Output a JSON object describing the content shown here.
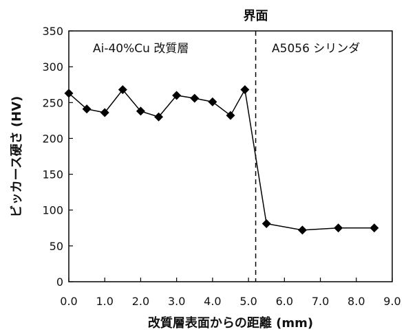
{
  "chart_data": {
    "type": "line",
    "x": [
      0.0,
      0.5,
      1.0,
      1.5,
      2.0,
      2.5,
      3.0,
      3.5,
      4.0,
      4.5,
      4.9,
      5.5,
      6.5,
      7.5,
      8.5
    ],
    "series": [
      {
        "values": [
          263,
          241,
          236,
          268,
          238,
          230,
          260,
          256,
          251,
          232,
          268,
          81,
          72,
          75,
          75
        ]
      }
    ],
    "xlabel": "改質層表面からの距離 (mm)",
    "ylabel": "ビッカース硬さ (HV)",
    "xlim": [
      0.0,
      9.0
    ],
    "ylim": [
      0,
      350
    ],
    "x_ticks": [
      "0.0",
      "1.0",
      "2.0",
      "3.0",
      "4.0",
      "5.0",
      "6.0",
      "7.0",
      "8.0",
      "9.0"
    ],
    "y_ticks": [
      "0",
      "50",
      "100",
      "150",
      "200",
      "250",
      "300",
      "350"
    ],
    "grid": false,
    "interface_x": 5.2,
    "annotations": {
      "interface_label": "界面",
      "left_region": "Ai-40%Cu 改質層",
      "right_region": "A5056 シリンダ"
    },
    "colors": {
      "line": "#000000",
      "marker": "#000000"
    }
  }
}
